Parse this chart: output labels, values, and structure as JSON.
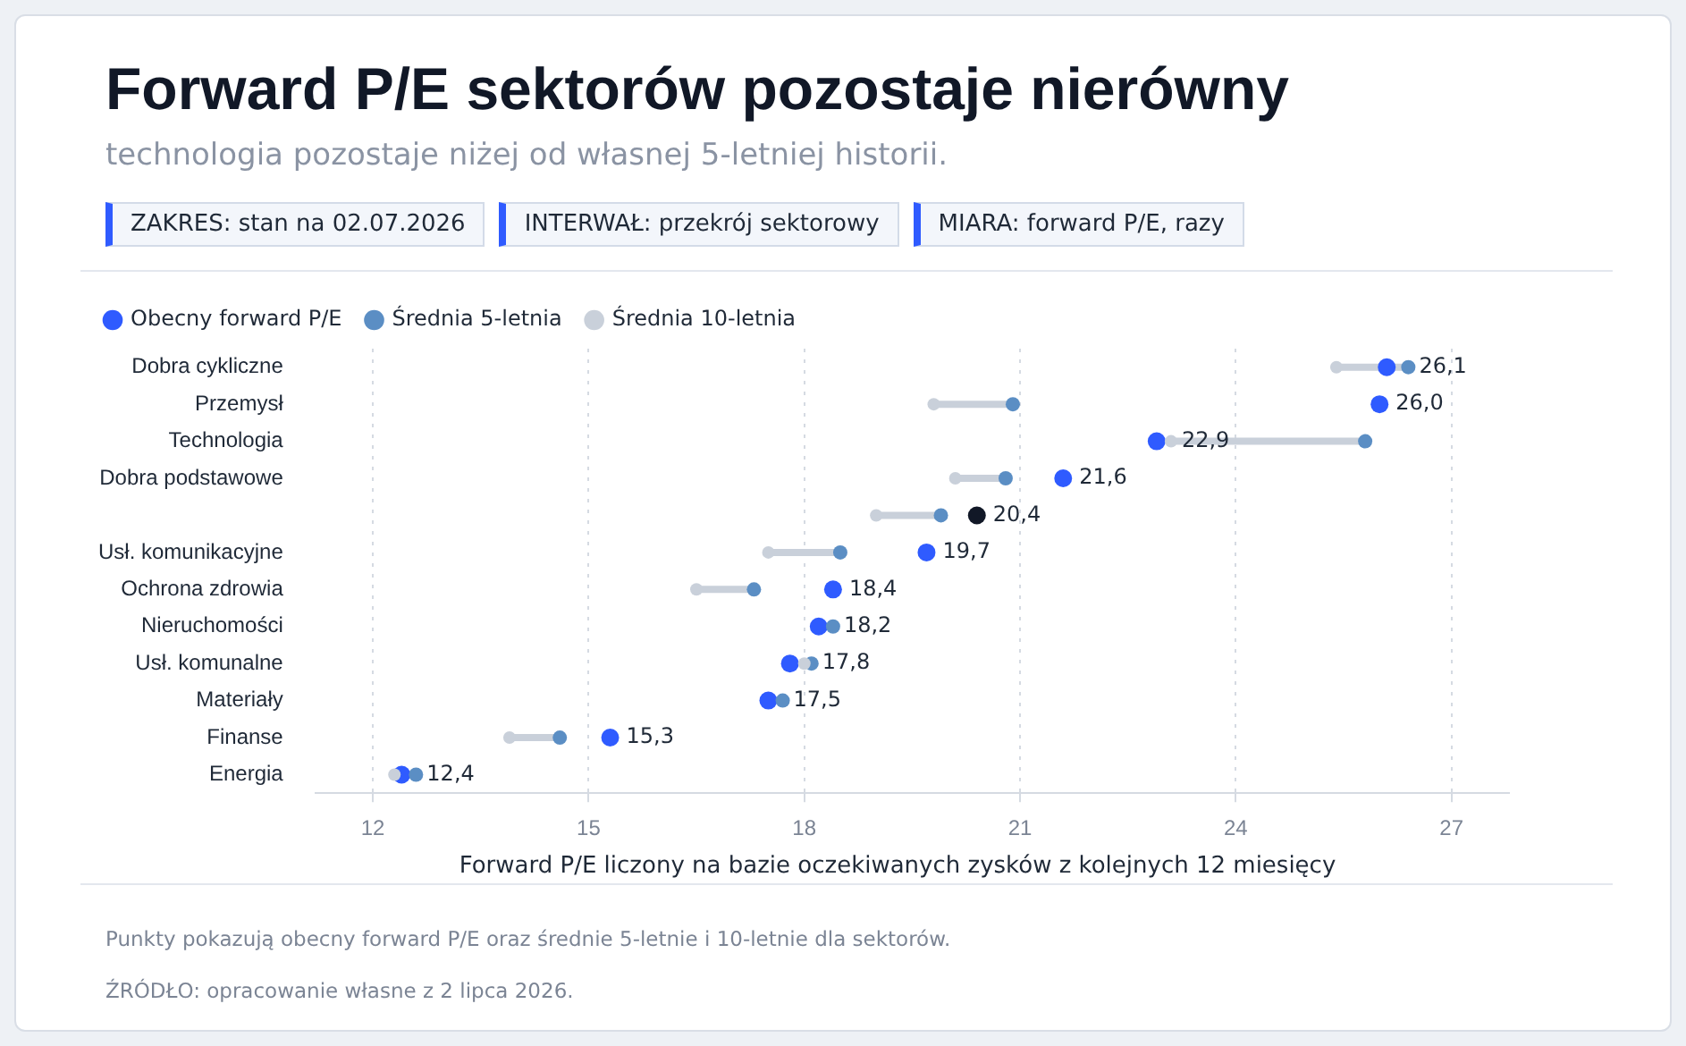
{
  "chart_data": {
    "type": "scatter",
    "orientation": "horizontal",
    "title": "Forward P/E sektorów pozostaje nierówny",
    "subtitle": "technologia pozostaje niżej od własnej 5-letniej historii.",
    "annotations": [
      "ZAKRES: stan na 02.07.2026",
      "INTERWAŁ: przekrój sektorowy",
      "MIARA: forward P/E, razy",
      "Punkty pokazują obecny forward P/E oraz średnie 5-letnie i 10-letnie dla sektorów.",
      "ŹRÓDŁO: opracowanie własne z 2 lipca 2026."
    ],
    "xlabel": "Forward P/E liczony na bazie oczekiwanych zysków z kolejnych 12 miesięcy",
    "categories": [
      "Dobra cykliczne",
      "Przemysł",
      "Technologia",
      "Dobra podstawowe",
      null,
      "Usł. komunikacyjne",
      "Ochrona zdrowia",
      "Nieruchomości",
      "Usł. komunalne",
      "Materiały",
      "Finanse",
      "Energia"
    ],
    "series": [
      {
        "name": "Obecny forward P/E",
        "color": "#2f5bff",
        "colors": [
          "#2f5bff",
          "#2f5bff",
          "#2f5bff",
          "#2f5bff",
          "#111827",
          "#2f5bff",
          "#2f5bff",
          "#2f5bff",
          "#2f5bff",
          "#2f5bff",
          "#2f5bff",
          "#2f5bff"
        ],
        "values": [
          26.1,
          26.0,
          22.9,
          21.6,
          20.4,
          19.7,
          18.4,
          18.2,
          17.8,
          17.5,
          15.3,
          12.4
        ],
        "value_labels": [
          "26,1",
          "26,0",
          "22,9",
          "21,6",
          "20,4",
          "19,7",
          "18,4",
          "18,2",
          "17,8",
          "17,5",
          "15,3",
          "12,4"
        ]
      },
      {
        "name": "Średnia 5-letnia",
        "color": "#5b8ec4",
        "values": [
          26.4,
          20.9,
          25.8,
          20.8,
          19.9,
          18.5,
          17.3,
          18.4,
          18.1,
          17.7,
          14.6,
          12.6
        ]
      },
      {
        "name": "Średnia 10-letnia",
        "color": "#c9d0da",
        "values": [
          25.4,
          19.8,
          23.1,
          20.1,
          19.0,
          17.5,
          16.5,
          null,
          18.0,
          null,
          13.9,
          12.3
        ]
      }
    ],
    "xlim": [
      11.2,
      27.8
    ],
    "xticks": [
      12,
      15,
      18,
      21,
      24,
      27
    ],
    "grid": "x",
    "legend": "top left",
    "marker": "circle"
  }
}
